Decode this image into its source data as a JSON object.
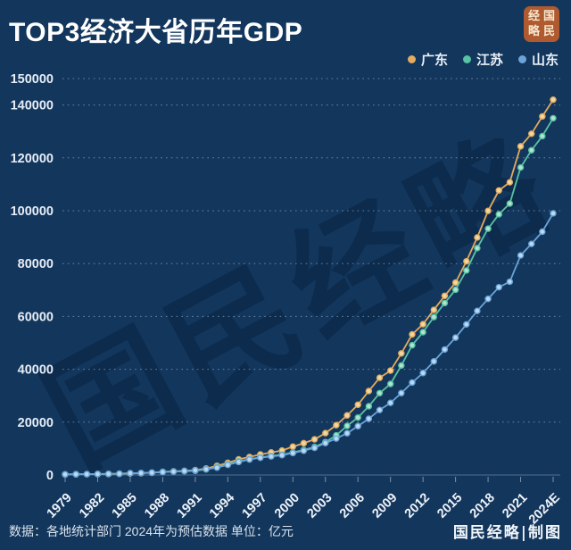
{
  "page": {
    "title": "TOP3经济大省历年GDP"
  },
  "logo": {
    "chars": [
      "经",
      "国",
      "略",
      "民"
    ],
    "bg_color": "#b05a2f"
  },
  "watermark": {
    "text": "国民经略"
  },
  "footer": {
    "source": "数据：各地统计部门 2024年为预估数据 单位：亿元",
    "credit": "国民经略|制图"
  },
  "colors": {
    "background": "#13365c",
    "gridline": "rgba(176,198,224,0.55)",
    "axis_text": "#e6edf6",
    "watermark": "#0c2a4a"
  },
  "chart_data": {
    "type": "line",
    "title": "TOP3经济大省历年GDP",
    "xlabel": "",
    "ylabel": "",
    "unit": "亿元",
    "grid": "horizontal dotted",
    "legend_position": "top-right",
    "ylim": [
      0,
      150000
    ],
    "y_ticks": [
      0,
      20000,
      40000,
      60000,
      80000,
      100000,
      120000,
      140000,
      150000
    ],
    "x_tick_every": 3,
    "x": [
      "1979",
      "1980",
      "1981",
      "1982",
      "1983",
      "1984",
      "1985",
      "1986",
      "1987",
      "1988",
      "1989",
      "1990",
      "1991",
      "1992",
      "1993",
      "1994",
      "1995",
      "1996",
      "1997",
      "1998",
      "1999",
      "2000",
      "2001",
      "2002",
      "2003",
      "2004",
      "2005",
      "2006",
      "2007",
      "2008",
      "2009",
      "2010",
      "2011",
      "2012",
      "2013",
      "2014",
      "2015",
      "2016",
      "2017",
      "2018",
      "2019",
      "2020",
      "2021",
      "2022",
      "2023",
      "2024E"
    ],
    "series": [
      {
        "name": "广东",
        "color": "#e2ab5f",
        "point_fill": "#f2d7a1",
        "values": [
          209,
          250,
          290,
          340,
          369,
          459,
          577,
          668,
          847,
          1155,
          1381,
          1559,
          1893,
          2448,
          3469,
          4619,
          5933,
          6835,
          7775,
          8531,
          9251,
          10741,
          12039,
          13502,
          15845,
          18865,
          22557,
          26588,
          31777,
          36797,
          39493,
          46013,
          53210,
          57068,
          62475,
          67810,
          72813,
          80855,
          89879,
          99945,
          107671,
          110761,
          124370,
          129119,
          135673,
          142000
        ]
      },
      {
        "name": "江苏",
        "color": "#58c2a2",
        "point_fill": "#b0e3d1",
        "values": [
          249,
          320,
          351,
          390,
          438,
          520,
          652,
          745,
          922,
          1209,
          1322,
          1417,
          1601,
          2136,
          2998,
          4057,
          5155,
          6004,
          6680,
          7200,
          7698,
          8554,
          9457,
          10607,
          12443,
          15004,
          18599,
          21742,
          26018,
          30982,
          34457,
          41425,
          49110,
          54058,
          59753,
          65088,
          70116,
          77388,
          85870,
          93208,
          98657,
          102719,
          116364,
          122876,
          128222,
          135000
        ]
      },
      {
        "name": "山东",
        "color": "#6ba4d8",
        "point_fill": "#bcd9f3",
        "values": [
          244,
          292,
          323,
          367,
          420,
          496,
          680,
          743,
          893,
          1118,
          1294,
          1511,
          1811,
          2197,
          2770,
          3845,
          4953,
          5884,
          6537,
          7021,
          7494,
          8337,
          9195,
          10276,
          12078,
          13800,
          15800,
          18500,
          21300,
          24600,
          27300,
          31000,
          35000,
          38600,
          43000,
          47500,
          52000,
          57000,
          62100,
          66649,
          71068,
          73129,
          83096,
          87435,
          92069,
          99000
        ]
      }
    ]
  }
}
